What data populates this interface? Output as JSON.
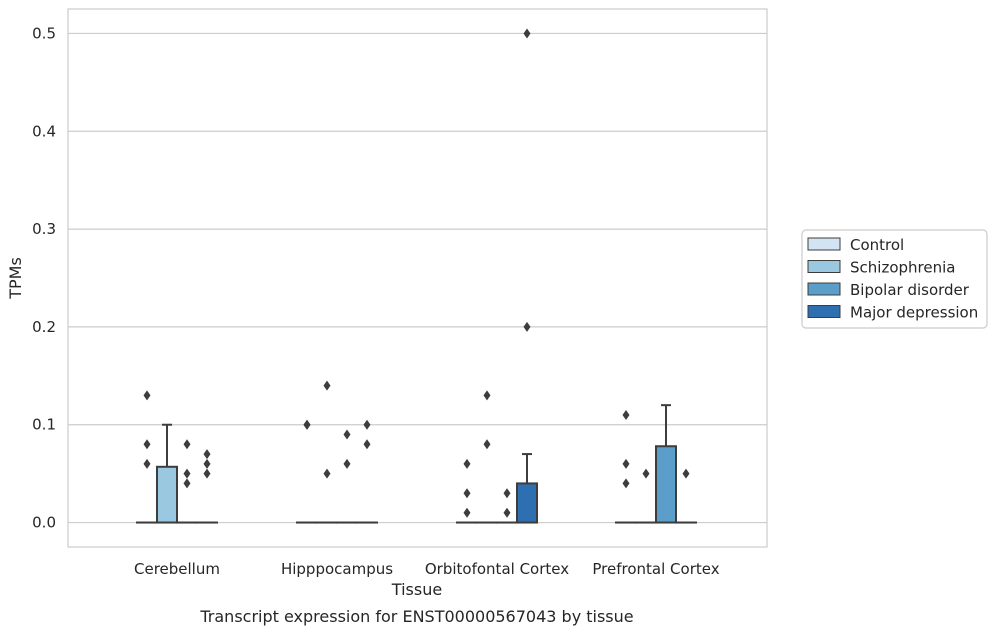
{
  "chart_data": {
    "type": "box",
    "title": "Transcript expression for ENST00000567043 by tissue",
    "xlabel": "Tissue",
    "ylabel": "TPMs",
    "ylim": [
      -0.025,
      0.525
    ],
    "yticks": [
      "0.0",
      "0.1",
      "0.2",
      "0.3",
      "0.4",
      "0.5"
    ],
    "categories": [
      "Cerebellum",
      "Hipppocampus",
      "Orbitofontal Cortex",
      "Prefrontal Cortex"
    ],
    "grid": true,
    "legend": {
      "placement": "right"
    },
    "series": [
      {
        "name": "Control",
        "color": "#d2e3f3",
        "boxes": [
          {
            "q1": 0,
            "median": 0,
            "q3": 0,
            "whisker_low": 0,
            "whisker_high": 0,
            "outliers": [
              0.06,
              0.08,
              0.13
            ]
          },
          {
            "q1": 0,
            "median": 0,
            "q3": 0,
            "whisker_low": 0,
            "whisker_high": 0,
            "outliers": [
              0.1,
              0.1
            ]
          },
          {
            "q1": 0,
            "median": 0,
            "q3": 0,
            "whisker_low": 0,
            "whisker_high": 0,
            "outliers": [
              0.01,
              0.03,
              0.06
            ]
          },
          {
            "q1": 0,
            "median": 0,
            "q3": 0,
            "whisker_low": 0,
            "whisker_high": 0,
            "outliers": [
              0.04,
              0.06,
              0.11
            ]
          }
        ]
      },
      {
        "name": "Schizophrenia",
        "color": "#9ac8e0",
        "boxes": [
          {
            "q1": 0,
            "median": 0,
            "q3": 0.057,
            "whisker_low": 0,
            "whisker_high": 0.1,
            "outliers": []
          },
          {
            "q1": 0,
            "median": 0,
            "q3": 0,
            "whisker_low": 0,
            "whisker_high": 0,
            "outliers": [
              0.05,
              0.14
            ]
          },
          {
            "q1": 0,
            "median": 0,
            "q3": 0,
            "whisker_low": 0,
            "whisker_high": 0,
            "outliers": [
              0.08,
              0.13
            ]
          },
          {
            "q1": 0,
            "median": 0,
            "q3": 0,
            "whisker_low": 0,
            "whisker_high": 0,
            "outliers": [
              0.05
            ]
          }
        ]
      },
      {
        "name": "Bipolar disorder",
        "color": "#5a9ec9",
        "boxes": [
          {
            "q1": 0,
            "median": 0,
            "q3": 0,
            "whisker_low": 0,
            "whisker_high": 0,
            "outliers": [
              0.04,
              0.05,
              0.08
            ]
          },
          {
            "q1": 0,
            "median": 0,
            "q3": 0,
            "whisker_low": 0,
            "whisker_high": 0,
            "outliers": [
              0.06,
              0.09
            ]
          },
          {
            "q1": 0,
            "median": 0,
            "q3": 0,
            "whisker_low": 0,
            "whisker_high": 0,
            "outliers": [
              0.01,
              0.03
            ]
          },
          {
            "q1": 0,
            "median": 0,
            "q3": 0.078,
            "whisker_low": 0,
            "whisker_high": 0.12,
            "outliers": []
          }
        ]
      },
      {
        "name": "Major depression",
        "color": "#2d6fb0",
        "boxes": [
          {
            "q1": 0,
            "median": 0,
            "q3": 0,
            "whisker_low": 0,
            "whisker_high": 0,
            "outliers": [
              0.05,
              0.06,
              0.07
            ]
          },
          {
            "q1": 0,
            "median": 0,
            "q3": 0,
            "whisker_low": 0,
            "whisker_high": 0,
            "outliers": [
              0.08,
              0.1
            ]
          },
          {
            "q1": 0,
            "median": 0,
            "q3": 0.04,
            "whisker_low": 0,
            "whisker_high": 0.07,
            "outliers": [
              0.2,
              0.5
            ]
          },
          {
            "q1": 0,
            "median": 0,
            "q3": 0,
            "whisker_low": 0,
            "whisker_high": 0,
            "outliers": [
              0.05
            ]
          }
        ]
      }
    ]
  }
}
